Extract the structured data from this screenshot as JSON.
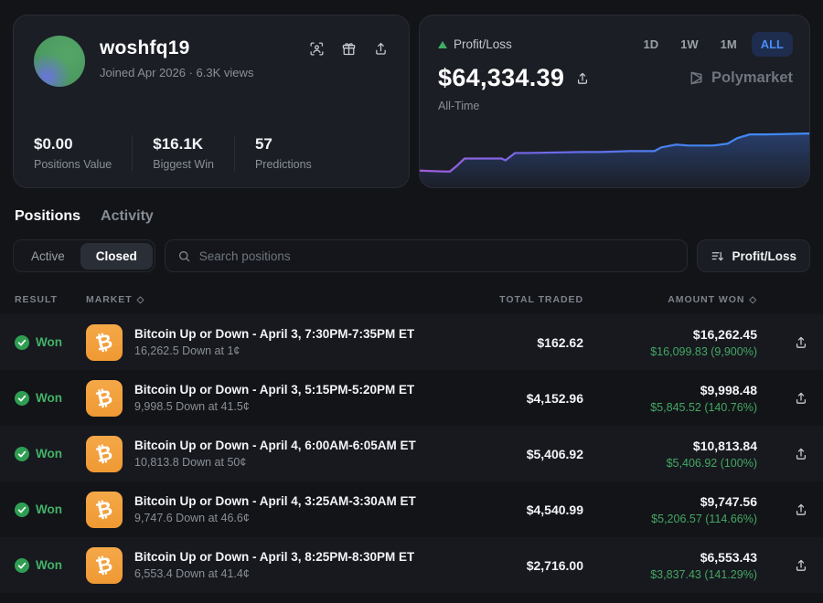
{
  "profile": {
    "username": "woshfq19",
    "joined": "Joined Apr 2026",
    "separator": "·",
    "views": "6.3K views",
    "action_icons": [
      "face-scan-icon",
      "gift-icon",
      "share-icon"
    ],
    "stats": [
      {
        "value": "$0.00",
        "label": "Positions Value"
      },
      {
        "value": "$16.1K",
        "label": "Biggest Win"
      },
      {
        "value": "57",
        "label": "Predictions"
      }
    ]
  },
  "pnl_card": {
    "title": "Profit/Loss",
    "value": "$64,334.39",
    "period_label": "All-Time",
    "ranges": [
      "1D",
      "1W",
      "1M",
      "ALL"
    ],
    "active_range": "ALL",
    "watermark": "Polymarket",
    "colors": {
      "up_triangle": "#3fae63",
      "active_range_text": "#4c8bf5",
      "active_range_bg": "#1e2c4d",
      "line_start": "#a05cd8",
      "line_end": "#3f8af5"
    }
  },
  "chart_data": {
    "type": "area",
    "title": "Profit/Loss All-Time sparkline",
    "xlabel": "",
    "ylabel": "",
    "final_value": 64334.39,
    "grid": false,
    "legend": false,
    "points_viewbox": "0 0 400 65",
    "points": [
      [
        0,
        47
      ],
      [
        26,
        48
      ],
      [
        31,
        48
      ],
      [
        38,
        42
      ],
      [
        46,
        34
      ],
      [
        84,
        34
      ],
      [
        88,
        36
      ],
      [
        98,
        28
      ],
      [
        111,
        28
      ],
      [
        166,
        27
      ],
      [
        186,
        27
      ],
      [
        216,
        26
      ],
      [
        241,
        26
      ],
      [
        248,
        22
      ],
      [
        263,
        19
      ],
      [
        276,
        20
      ],
      [
        301,
        20
      ],
      [
        316,
        18
      ],
      [
        326,
        12
      ],
      [
        339,
        8
      ],
      [
        356,
        8
      ],
      [
        400,
        7
      ]
    ]
  },
  "tabs": [
    {
      "label": "Positions",
      "active": true
    },
    {
      "label": "Activity",
      "active": false
    }
  ],
  "filters": {
    "segments": [
      {
        "label": "Active",
        "active": false
      },
      {
        "label": "Closed",
        "active": true
      }
    ],
    "search_placeholder": "Search positions",
    "sort_button_label": "Profit/Loss"
  },
  "table": {
    "headers": [
      "RESULT",
      "MARKET",
      "TOTAL TRADED",
      "AMOUNT WON"
    ],
    "rows": [
      {
        "result": "Won",
        "market": "Bitcoin Up or Down - April 3, 7:30PM-7:35PM ET",
        "detail": "16,262.5 Down at 1¢",
        "traded": "$162.62",
        "won": "$16,262.45",
        "profit": "$16,099.83 (9,900%)"
      },
      {
        "result": "Won",
        "market": "Bitcoin Up or Down - April 3, 5:15PM-5:20PM ET",
        "detail": "9,998.5 Down at 41.5¢",
        "traded": "$4,152.96",
        "won": "$9,998.48",
        "profit": "$5,845.52 (140.76%)"
      },
      {
        "result": "Won",
        "market": "Bitcoin Up or Down - April 4, 6:00AM-6:05AM ET",
        "detail": "10,813.8 Down at 50¢",
        "traded": "$5,406.92",
        "won": "$10,813.84",
        "profit": "$5,406.92 (100%)"
      },
      {
        "result": "Won",
        "market": "Bitcoin Up or Down - April 4, 3:25AM-3:30AM ET",
        "detail": "9,747.6 Down at 46.6¢",
        "traded": "$4,540.99",
        "won": "$9,747.56",
        "profit": "$5,206.57 (114.66%)"
      },
      {
        "result": "Won",
        "market": "Bitcoin Up or Down - April 3, 8:25PM-8:30PM ET",
        "detail": "6,553.4 Down at 41.4¢",
        "traded": "$2,716.00",
        "won": "$6,553.43",
        "profit": "$3,837.43 (141.29%)"
      }
    ]
  }
}
